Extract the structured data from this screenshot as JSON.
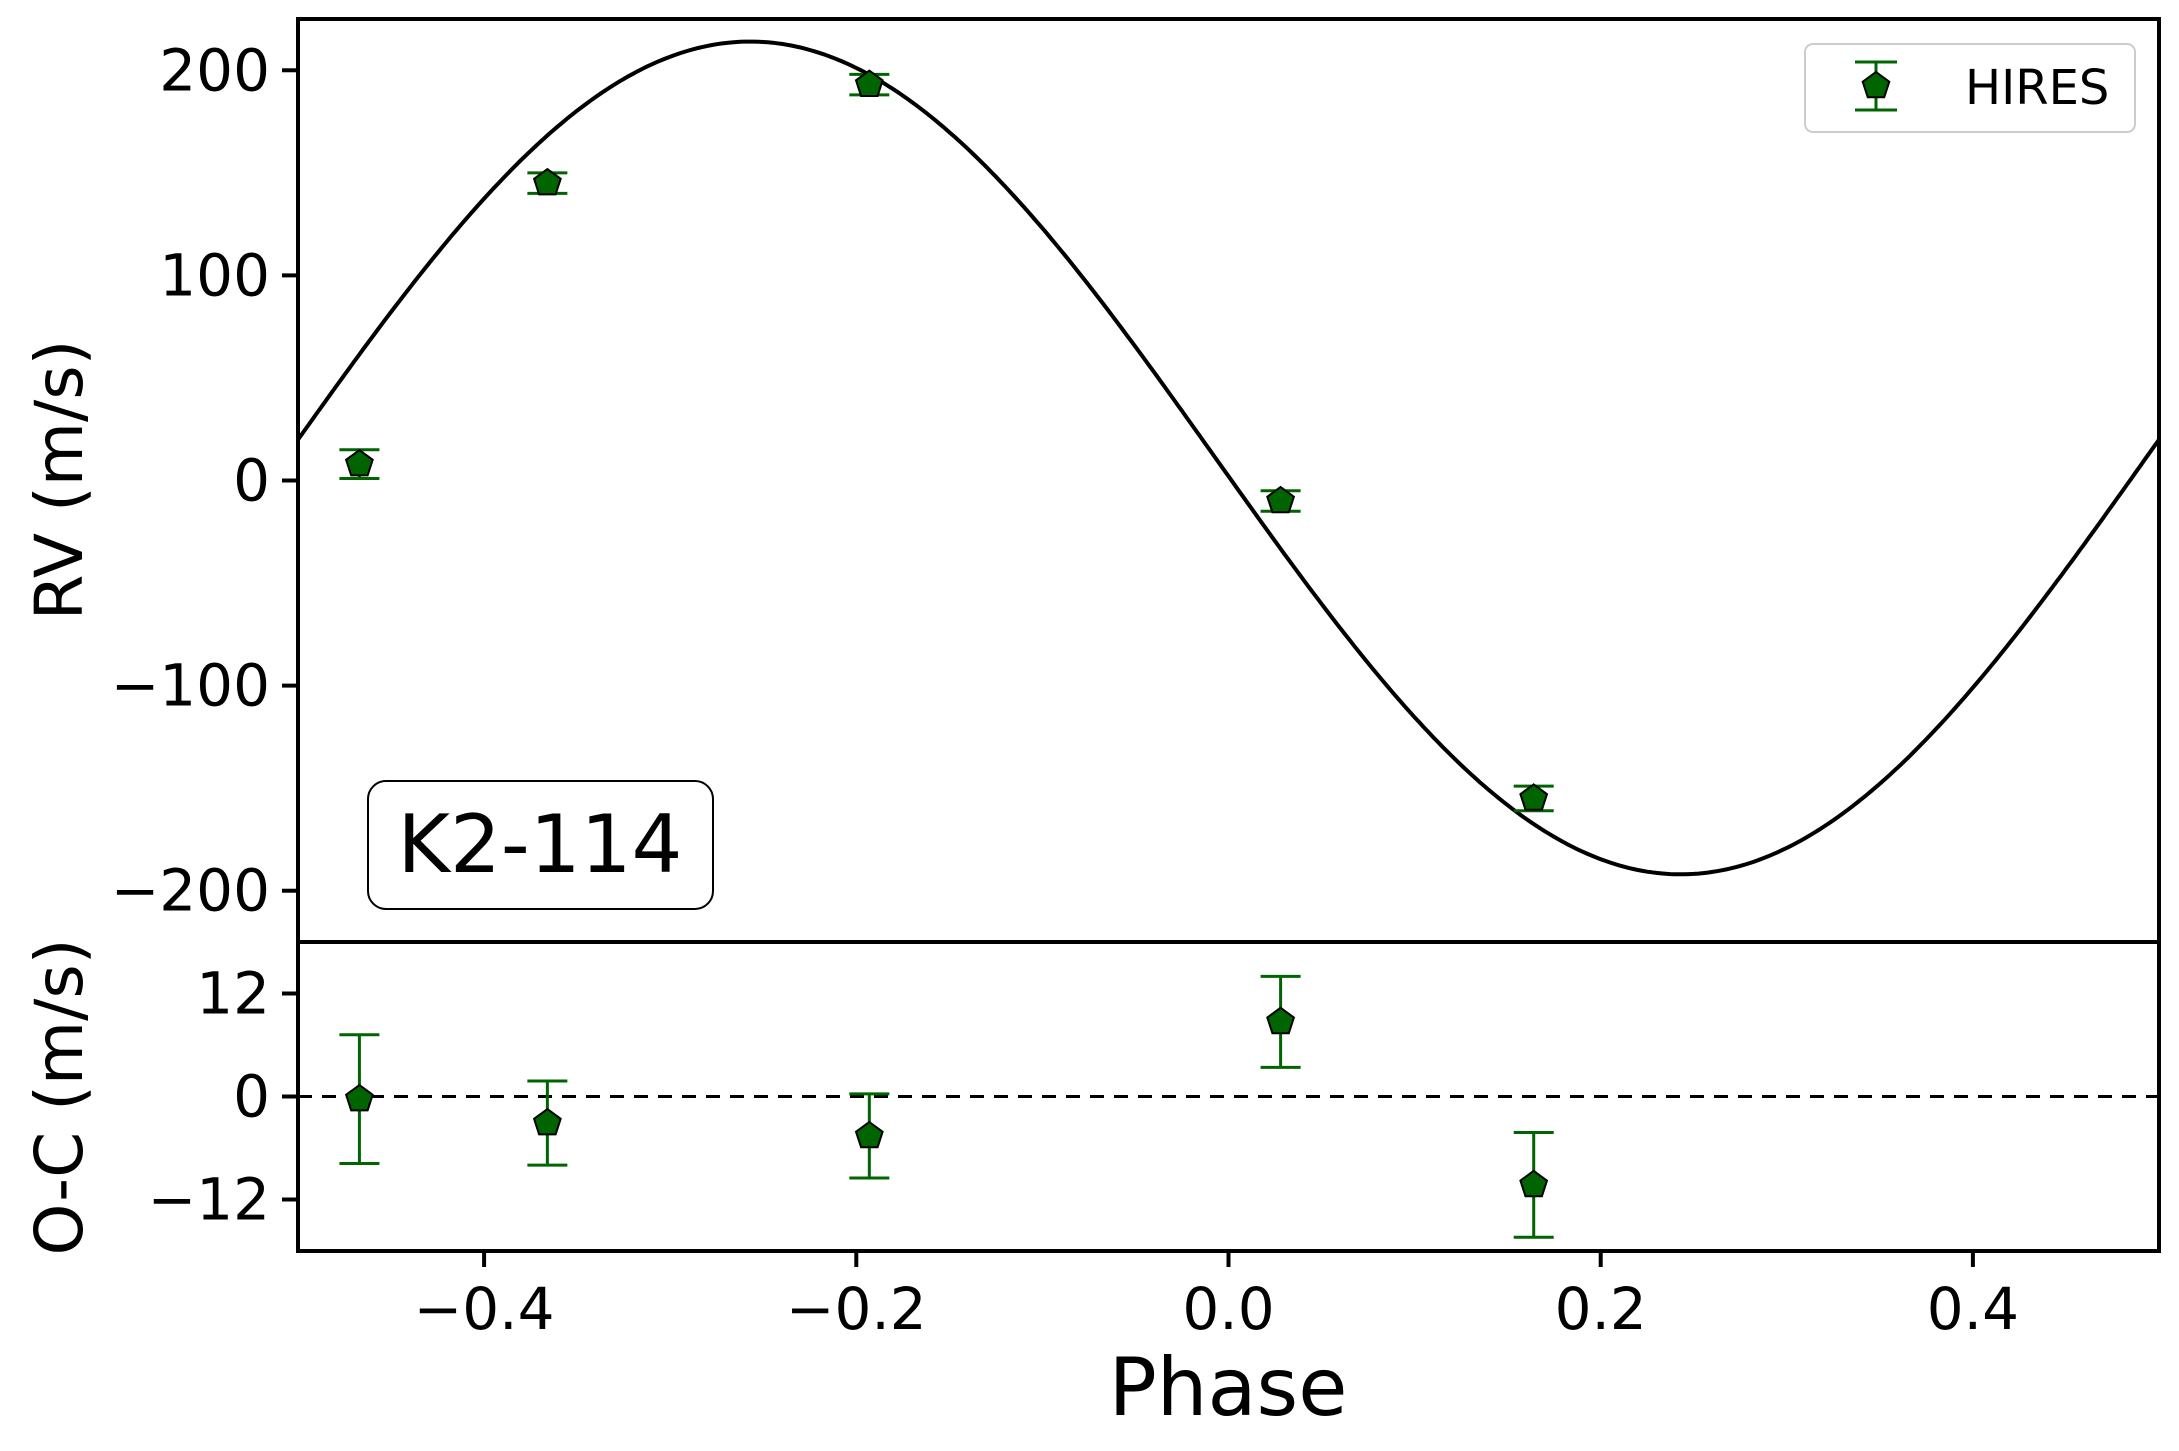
{
  "chart_data": [
    {
      "type": "scatter",
      "panel": "rv",
      "ylabel": "RV (m/s)",
      "xlim": [
        -0.5,
        0.5
      ],
      "ylim": [
        -225,
        225
      ],
      "yticks": [
        200,
        100,
        0,
        -100,
        -200
      ],
      "ytick_labels": [
        "200",
        "100",
        "0",
        "−100",
        "−200"
      ],
      "annotation": "K2-114",
      "legend": {
        "position": "top-right",
        "entries": [
          "HIRES"
        ]
      },
      "series": [
        {
          "name": "HIRES",
          "marker": "pentagon",
          "color": "#006400",
          "x": [
            -0.467,
            -0.366,
            -0.193,
            0.028,
            0.164
          ],
          "y": [
            8,
            145,
            193,
            -10,
            -155
          ],
          "yerr": [
            7,
            5,
            5,
            5,
            6
          ]
        }
      ],
      "model": {
        "kind": "line",
        "color": "#000000",
        "amplitude": 203,
        "offset": 11,
        "peak_phase": -0.257
      }
    },
    {
      "type": "scatter",
      "panel": "residuals",
      "ylabel": "O-C (m/s)",
      "xlabel": "Phase",
      "xlim": [
        -0.5,
        0.5
      ],
      "ylim": [
        -18,
        18
      ],
      "xticks": [
        -0.4,
        -0.2,
        0.0,
        0.2,
        0.4
      ],
      "xtick_labels": [
        "−0.4",
        "−0.2",
        "0.0",
        "0.2",
        "0.4"
      ],
      "yticks": [
        12,
        0,
        -12
      ],
      "ytick_labels": [
        "12",
        "0",
        "−12"
      ],
      "zero_line": "dashed",
      "series": [
        {
          "name": "HIRES",
          "marker": "pentagon",
          "color": "#006400",
          "x": [
            -0.467,
            -0.366,
            -0.193,
            0.028,
            0.164
          ],
          "y": [
            -0.3,
            -3.1,
            -4.6,
            8.7,
            -10.3
          ],
          "yerr": [
            7.5,
            4.9,
            4.9,
            5.3,
            6.1
          ]
        }
      ]
    }
  ]
}
